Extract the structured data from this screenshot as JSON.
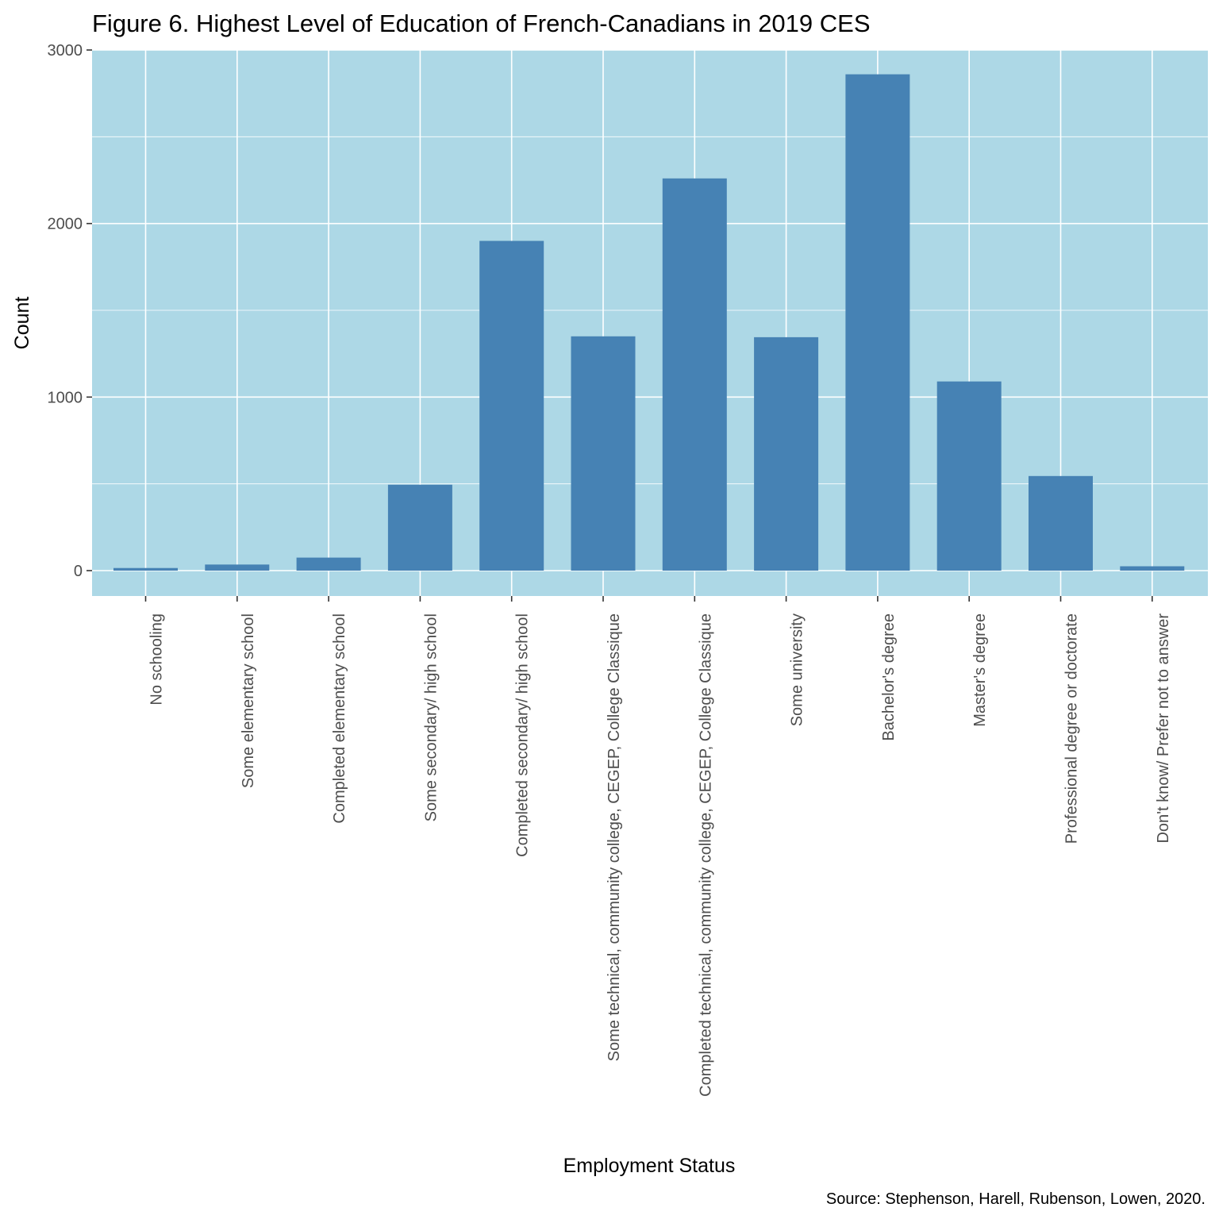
{
  "chart_data": {
    "type": "bar",
    "title": "Figure 6. Highest Level of Education of French-Canadians in 2019 CES",
    "xlabel": "Employment Status",
    "ylabel": "Count",
    "caption": "Source: Stephenson, Harell, Rubenson, Lowen, 2020.",
    "categories": [
      "No schooling",
      "Some elementary school",
      "Completed elementary school",
      "Some secondary/ high school",
      "Completed secondary/ high school",
      "Some technical, community college, CEGEP, College Classique",
      "Completed technical, community college, CEGEP, College Classique",
      "Some university",
      "Bachelor's degree",
      "Master's degree",
      "Professional degree or doctorate",
      "Don't know/ Prefer not to answer"
    ],
    "values": [
      15,
      35,
      75,
      495,
      1900,
      1350,
      2260,
      1345,
      2860,
      1090,
      545,
      25
    ],
    "yticks": [
      "0",
      "1000",
      "2000",
      "3000"
    ],
    "ylim": [
      -145,
      3000
    ],
    "grid": true,
    "colors": {
      "panel": "#add8e6",
      "bar": "#4682b4",
      "grid": "#ffffff"
    }
  }
}
